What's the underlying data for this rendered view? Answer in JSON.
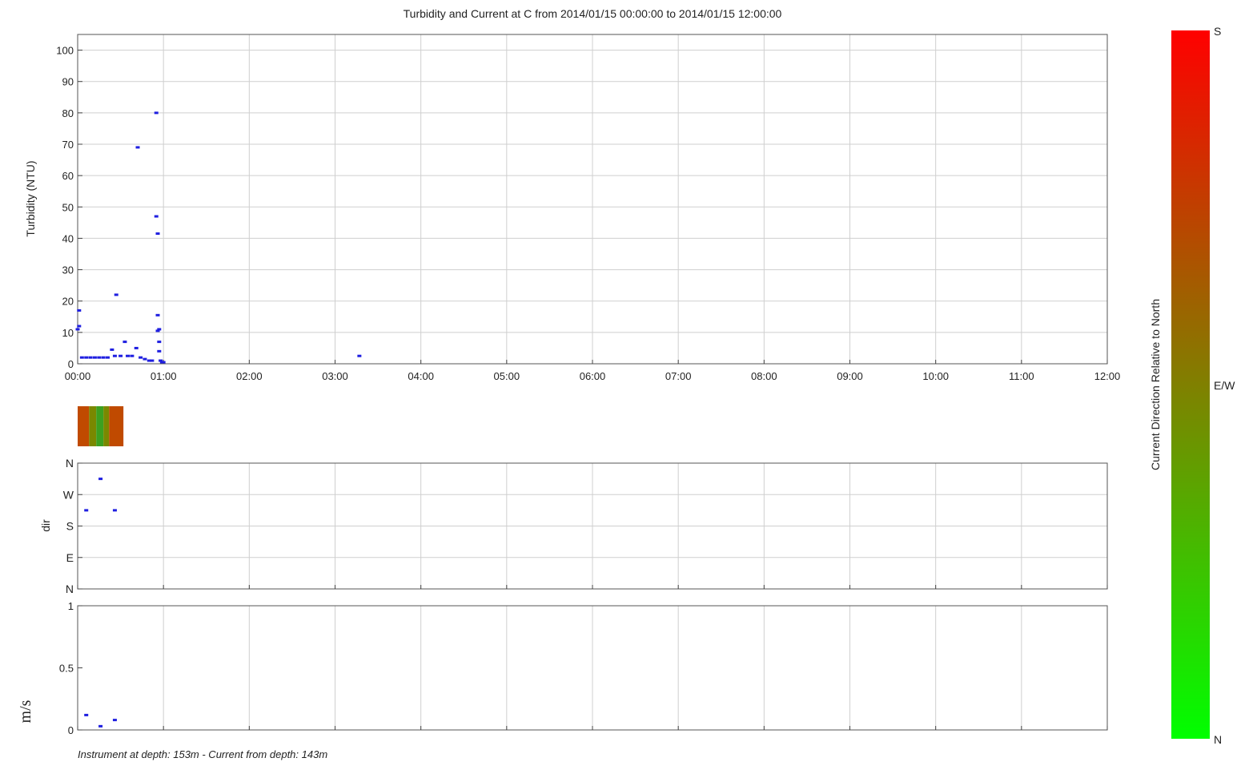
{
  "title": "Turbidity and Current at C from 2014/01/15 00:00:00 to 2014/01/15 12:00:00",
  "footer": "Instrument at depth: 153m - Current from depth: 143m",
  "colors": {
    "marker": "#1f1fe0",
    "north": "#00ff00",
    "south": "#ff0000",
    "grid": "#cfcfcf"
  },
  "colorbar": {
    "label": "Current Direction Relative to North",
    "ticks": [
      "S",
      "E/W",
      "N"
    ]
  },
  "chart_data": [
    {
      "type": "scatter",
      "name": "turbidity",
      "ylabel": "Turbidity (NTU)",
      "xlim": [
        "00:00",
        "12:00"
      ],
      "ylim": [
        0,
        105
      ],
      "xticks": [
        "00:00",
        "01:00",
        "02:00",
        "03:00",
        "04:00",
        "05:00",
        "06:00",
        "07:00",
        "08:00",
        "09:00",
        "10:00",
        "11:00",
        "12:00"
      ],
      "yticks": [
        "0",
        "10",
        "20",
        "30",
        "40",
        "50",
        "60",
        "70",
        "80",
        "90",
        "100"
      ],
      "grid": true,
      "points": [
        {
          "t": "00:00",
          "y": 11
        },
        {
          "t": "00:01",
          "y": 12
        },
        {
          "t": "00:01",
          "y": 17
        },
        {
          "t": "00:03",
          "y": 2
        },
        {
          "t": "00:06",
          "y": 2
        },
        {
          "t": "00:09",
          "y": 2
        },
        {
          "t": "00:12",
          "y": 2
        },
        {
          "t": "00:15",
          "y": 2
        },
        {
          "t": "00:18",
          "y": 2
        },
        {
          "t": "00:21",
          "y": 2
        },
        {
          "t": "00:24",
          "y": 4.5
        },
        {
          "t": "00:26",
          "y": 2.5
        },
        {
          "t": "00:27",
          "y": 22
        },
        {
          "t": "00:30",
          "y": 2.5
        },
        {
          "t": "00:33",
          "y": 7
        },
        {
          "t": "00:35",
          "y": 2.5
        },
        {
          "t": "00:38",
          "y": 2.5
        },
        {
          "t": "00:41",
          "y": 5
        },
        {
          "t": "00:42",
          "y": 69
        },
        {
          "t": "00:44",
          "y": 2
        },
        {
          "t": "00:47",
          "y": 1.5
        },
        {
          "t": "00:50",
          "y": 1
        },
        {
          "t": "00:52",
          "y": 1
        },
        {
          "t": "00:55",
          "y": 80
        },
        {
          "t": "00:55",
          "y": 47
        },
        {
          "t": "00:56",
          "y": 41.5
        },
        {
          "t": "00:56",
          "y": 15.5
        },
        {
          "t": "00:56",
          "y": 10.5
        },
        {
          "t": "00:57",
          "y": 11
        },
        {
          "t": "00:57",
          "y": 7
        },
        {
          "t": "00:57",
          "y": 4
        },
        {
          "t": "00:58",
          "y": 1
        },
        {
          "t": "00:59",
          "y": 0.5
        },
        {
          "t": "01:00",
          "y": 0.5
        },
        {
          "t": "03:17",
          "y": 2.5
        }
      ]
    },
    {
      "type": "heatmap",
      "name": "current-direction-strip",
      "cells": [
        {
          "start": "00:00",
          "end": "00:08",
          "direction": "S/W"
        },
        {
          "start": "00:08",
          "end": "00:13",
          "direction": "W"
        },
        {
          "start": "00:13",
          "end": "00:18",
          "direction": "N/W"
        },
        {
          "start": "00:18",
          "end": "00:22",
          "direction": "W"
        },
        {
          "start": "00:22",
          "end": "00:32",
          "direction": "S/W"
        }
      ]
    },
    {
      "type": "scatter",
      "name": "direction",
      "ylabel": "dir",
      "xlim": [
        "00:00",
        "12:00"
      ],
      "yticks": [
        "N",
        "W",
        "S",
        "E",
        "N"
      ],
      "grid": true,
      "points": [
        {
          "t": "00:06",
          "y": "between W and S"
        },
        {
          "t": "00:16",
          "y": "between N and W"
        },
        {
          "t": "00:26",
          "y": "between W and S"
        }
      ]
    },
    {
      "type": "scatter",
      "name": "speed",
      "ylabel": "m/s",
      "xlim": [
        "00:00",
        "12:00"
      ],
      "ylim": [
        0,
        1
      ],
      "yticks": [
        "0",
        "0.5",
        "1"
      ],
      "grid": true,
      "points": [
        {
          "t": "00:06",
          "y": 0.12
        },
        {
          "t": "00:16",
          "y": 0.03
        },
        {
          "t": "00:26",
          "y": 0.08
        }
      ]
    }
  ]
}
